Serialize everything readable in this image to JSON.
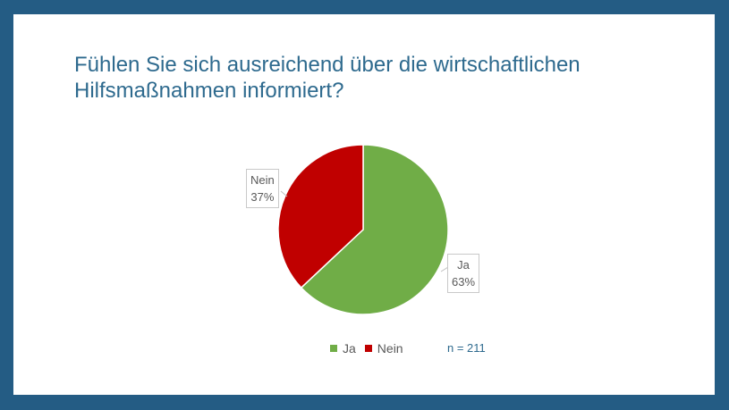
{
  "slide": {
    "title": "Fühlen Sie sich ausreichend über die wirtschaftlichen\nHilfsmaßnahmen informiert?",
    "note": "n = 211",
    "background_color": "#245c84",
    "title_color": "#2e6a8e"
  },
  "chart_data": {
    "type": "pie",
    "title": "Fühlen Sie sich ausreichend über die wirtschaftlichen Hilfsmaßnahmen informiert?",
    "slices": [
      {
        "label": "Ja",
        "value": 63,
        "display": "63%",
        "color": "#70ad47"
      },
      {
        "label": "Nein",
        "value": 37,
        "display": "37%",
        "color": "#c00000"
      }
    ],
    "legend": [
      "Ja",
      "Nein"
    ],
    "legend_position": "bottom"
  }
}
